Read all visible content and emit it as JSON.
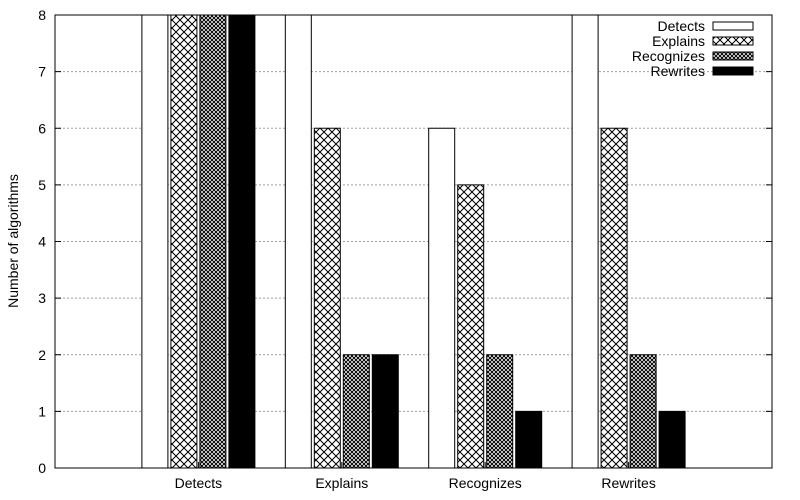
{
  "chart_data": {
    "type": "bar",
    "title": "",
    "xlabel": "",
    "ylabel": "Number of algorithms",
    "ylim": [
      0,
      8
    ],
    "yticks": [
      0,
      1,
      2,
      3,
      4,
      5,
      6,
      7,
      8
    ],
    "grid": true,
    "legend_position": "top-right",
    "categories": [
      "Detects",
      "Explains",
      "Recognizes",
      "Rewrites"
    ],
    "series": [
      {
        "name": "Detects",
        "pattern": "empty",
        "values": [
          8,
          8,
          6,
          8
        ]
      },
      {
        "name": "Explains",
        "pattern": "crosshatch",
        "values": [
          8,
          6,
          5,
          6
        ]
      },
      {
        "name": "Recognizes",
        "pattern": "dense-crosshatch",
        "values": [
          8,
          2,
          2,
          2
        ]
      },
      {
        "name": "Rewrites",
        "pattern": "solid",
        "values": [
          8,
          2,
          1,
          1
        ]
      }
    ],
    "colors": {
      "stroke": "#000000",
      "solid": "#000000",
      "grid": "#a0a0a0"
    }
  }
}
